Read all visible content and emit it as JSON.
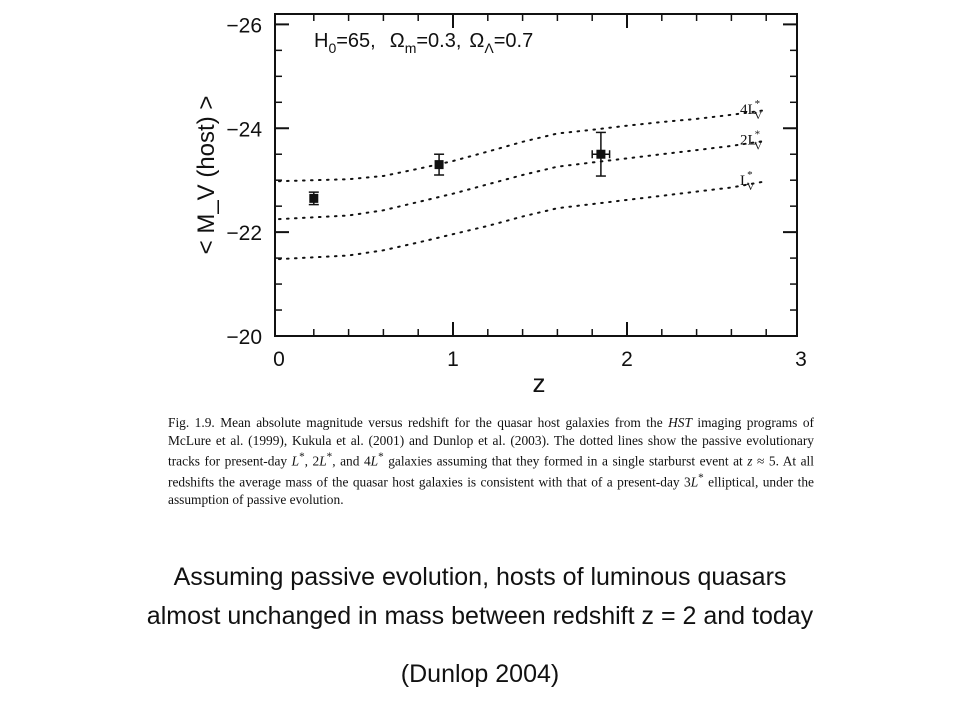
{
  "chart_data": {
    "type": "scatter",
    "title": "",
    "xlabel": "z",
    "ylabel": "< M_V (host) >",
    "xlim": [
      0,
      3
    ],
    "ylim": [
      -20,
      -26.2
    ],
    "x_ticks": [
      "0",
      "1",
      "2",
      "3"
    ],
    "y_ticks": [
      "−20",
      "−22",
      "−24",
      "−26"
    ],
    "annotation": {
      "h0": "H",
      "h0_sub": "0",
      "h0_val": "=65,",
      "om": "Ω",
      "om_sub": "m",
      "om_val": "=0.3,",
      "ol": "Ω",
      "ol_sub": "Λ",
      "ol_val": "=0.7"
    },
    "points": [
      {
        "x": 0.2,
        "y": -22.65,
        "err": 0.12,
        "xerr": 0
      },
      {
        "x": 0.92,
        "y": -23.3,
        "err": 0.2,
        "xerr": 0
      },
      {
        "x": 1.85,
        "y": -23.5,
        "err": 0.42,
        "xerr": 0.05
      }
    ],
    "tracks": [
      {
        "name": "4L*V",
        "label_main": "4L",
        "label_sup": "*",
        "label_sub": "V",
        "x": [
          0,
          0.4,
          0.6,
          0.8,
          1.0,
          1.2,
          1.4,
          1.6,
          1.8,
          2.0,
          2.2,
          2.4,
          2.6,
          2.8
        ],
        "y": [
          -22.98,
          -23.02,
          -23.08,
          -23.22,
          -23.37,
          -23.55,
          -23.74,
          -23.9,
          -23.97,
          -24.05,
          -24.12,
          -24.18,
          -24.26,
          -24.35
        ]
      },
      {
        "name": "2L*V",
        "label_main": "2L",
        "label_sup": "*",
        "label_sub": "V",
        "x": [
          0,
          0.4,
          0.6,
          0.8,
          1.0,
          1.2,
          1.4,
          1.6,
          1.8,
          2.0,
          2.2,
          2.4,
          2.6,
          2.8
        ],
        "y": [
          -22.25,
          -22.32,
          -22.42,
          -22.58,
          -22.74,
          -22.92,
          -23.1,
          -23.26,
          -23.34,
          -23.42,
          -23.5,
          -23.58,
          -23.66,
          -23.76
        ]
      },
      {
        "name": "L*V",
        "label_main": "L",
        "label_sup": "*",
        "label_sub": "V",
        "x": [
          0,
          0.4,
          0.6,
          0.8,
          1.0,
          1.2,
          1.4,
          1.6,
          1.8,
          2.0,
          2.2,
          2.4,
          2.6,
          2.8
        ],
        "y": [
          -21.48,
          -21.55,
          -21.65,
          -21.8,
          -21.96,
          -22.12,
          -22.3,
          -22.46,
          -22.54,
          -22.62,
          -22.7,
          -22.78,
          -22.86,
          -22.98
        ]
      }
    ]
  },
  "caption": {
    "fig_label": "Fig. 1.9.",
    "part1": " Mean absolute magnitude versus redshift for the quasar host galaxies from the ",
    "hst": "HST",
    "part2": " imaging programs of McLure et al.  (1999), Kukula et al.  (2001) and Dunlop et al. (2003). The dotted lines show the passive evolutionary tracks for present-day ",
    "l1": "L",
    "sup1": "*",
    "sep1": ", 2",
    "l2": "L",
    "sup2": "*",
    "sep2": ", and 4",
    "l3": "L",
    "sup3": "*",
    "part3": " galaxies assuming that they formed in a single starburst event at ",
    "zvar": "z",
    "part4": " ≈ 5.  At all redshifts the average mass of the quasar host galaxies is consistent with that of a present-day 3",
    "l4": "L",
    "sup4": "*",
    "part5": " elliptical, under the assumption of passive evolution."
  },
  "slide": {
    "line1": "Assuming passive evolution, hosts of luminous quasars",
    "line2": "almost unchanged in mass between redshift z = 2 and today",
    "citation": "(Dunlop 2004)"
  }
}
